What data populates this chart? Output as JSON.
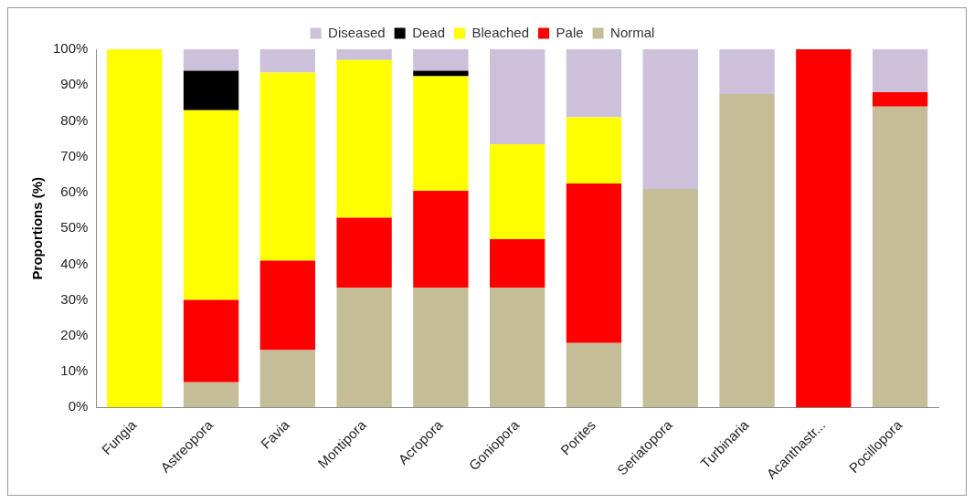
{
  "chart_data": {
    "type": "bar",
    "stacked": true,
    "ylabel": "Proportions (%)",
    "categories": [
      "Fungia",
      "Astreopora",
      "Favia",
      "Montipora",
      "Acropora",
      "Goniopora",
      "Porites",
      "Seriatopora",
      "Turbinaria",
      "Acanthastr...",
      "Pocillopora"
    ],
    "series": [
      {
        "name": "Normal",
        "color": "#c4bd97",
        "values": [
          0,
          7,
          16,
          33.5,
          33.5,
          33.5,
          18,
          61,
          87.5,
          0,
          84
        ]
      },
      {
        "name": "Pale",
        "color": "#ff0000",
        "values": [
          0,
          23,
          25,
          19.5,
          27,
          13.5,
          44.5,
          0,
          0,
          100,
          4
        ]
      },
      {
        "name": "Bleached",
        "color": "#ffff00",
        "values": [
          100,
          53,
          52.5,
          44,
          32,
          26.5,
          18.5,
          0,
          0,
          0,
          0
        ]
      },
      {
        "name": "Dead",
        "color": "#000000",
        "values": [
          0,
          11,
          0,
          0,
          1.5,
          0,
          0,
          0,
          0,
          0,
          0
        ]
      },
      {
        "name": "Diseased",
        "color": "#ccc0da",
        "values": [
          0,
          6,
          6.5,
          3,
          6,
          26.5,
          19,
          39,
          12.5,
          0,
          12
        ]
      }
    ],
    "ylim": [
      0,
      100
    ],
    "yticks": [
      {
        "value": 0,
        "label": "0%"
      },
      {
        "value": 10,
        "label": "10%"
      },
      {
        "value": 20,
        "label": "20%"
      },
      {
        "value": 30,
        "label": "30%"
      },
      {
        "value": 40,
        "label": "40%"
      },
      {
        "value": 50,
        "label": "50%"
      },
      {
        "value": 60,
        "label": "60%"
      },
      {
        "value": 70,
        "label": "70%"
      },
      {
        "value": 80,
        "label": "80%"
      },
      {
        "value": 90,
        "label": "90%"
      },
      {
        "value": 100,
        "label": "100%"
      }
    ],
    "grid": false,
    "legend": "top"
  }
}
